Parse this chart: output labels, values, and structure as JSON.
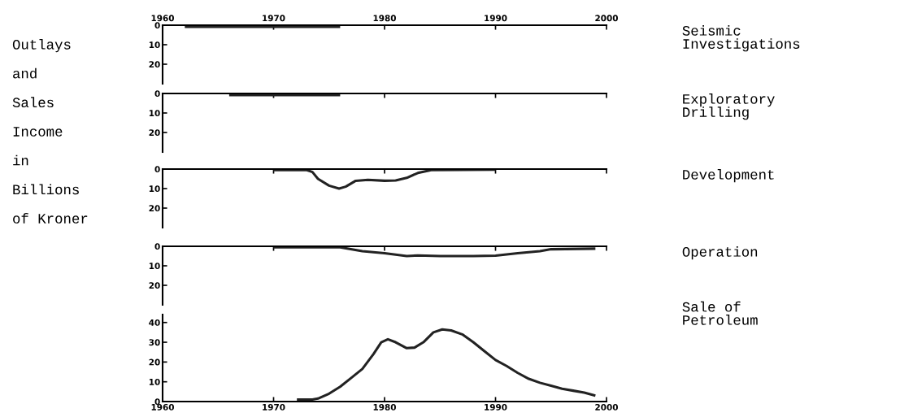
{
  "chart_data": [
    {
      "type": "line",
      "annotations": [
        "Outlays\nand\nSales\nIncome\nin\nBillions\nof Kroner"
      ],
      "xlim": [
        1960,
        2000
      ],
      "xticks": [
        1960,
        1970,
        1980,
        1990,
        2000
      ],
      "ylim": [
        30,
        0
      ],
      "yticks": [
        0,
        10,
        20
      ],
      "series": [
        {
          "name": "Seismic\nInvestigations",
          "color": "#222222",
          "x": [
            1962,
            1976
          ],
          "values": [
            0.8,
            0.8
          ]
        }
      ]
    },
    {
      "type": "line",
      "xlim": [
        1960,
        2000
      ],
      "xticks": [
        {
          "value": 1960,
          "label": null
        },
        {
          "value": 1970,
          "label": null
        },
        {
          "value": 1980,
          "label": null
        },
        {
          "value": 1990,
          "label": null
        },
        {
          "value": 2000,
          "label": null
        }
      ],
      "ylim": [
        30,
        0
      ],
      "yticks": [
        0,
        10,
        20
      ],
      "tick_labels": "y",
      "series": [
        {
          "name": "Exploratory\nDrilling",
          "color": "#222222",
          "x": [
            1966,
            1976
          ],
          "values": [
            0.8,
            0.8
          ]
        }
      ]
    },
    {
      "type": "line",
      "xlim": [
        1960,
        2000
      ],
      "xticks": [
        {
          "value": 1960,
          "label": null
        },
        {
          "value": 1970,
          "label": null
        },
        {
          "value": 1980,
          "label": null
        },
        {
          "value": 1990,
          "label": null
        },
        {
          "value": 2000,
          "label": null
        }
      ],
      "ylim": [
        30,
        0
      ],
      "yticks": [
        0,
        10,
        20
      ],
      "tick_labels": "y",
      "series": [
        {
          "name": "Development",
          "color": "#222222",
          "x": [
            1970,
            1973,
            1973.5,
            1974,
            1975,
            1975.9,
            1976.5,
            1977.4,
            1978.5,
            1980,
            1981,
            1982,
            1983,
            1984.2,
            1990
          ],
          "values": [
            0.5,
            0.5,
            1.5,
            5,
            8.5,
            10,
            9,
            6,
            5.5,
            6,
            5.8,
            4.5,
            2,
            0.5,
            0.3
          ]
        }
      ]
    },
    {
      "type": "line",
      "xlim": [
        1960,
        2000
      ],
      "xticks": [
        {
          "value": 1960,
          "label": null
        },
        {
          "value": 1970,
          "label": null
        },
        {
          "value": 1980,
          "label": null
        },
        {
          "value": 1990,
          "label": null
        },
        {
          "value": 2000,
          "label": null
        }
      ],
      "ylim": [
        30,
        0
      ],
      "yticks": [
        0,
        10,
        20
      ],
      "tick_labels": "y",
      "series": [
        {
          "name": "Operation",
          "color": "#222222",
          "x": [
            1970,
            1976,
            1978,
            1980,
            1982,
            1983,
            1985,
            1988,
            1990,
            1992,
            1994,
            1995,
            1999
          ],
          "values": [
            0.5,
            0.5,
            2.5,
            3.5,
            5,
            4.7,
            5,
            5,
            4.8,
            3.5,
            2.5,
            1.5,
            1.2
          ]
        }
      ]
    },
    {
      "type": "line",
      "xlim": [
        1960,
        2000
      ],
      "xticks": [
        1960,
        1970,
        1980,
        1990,
        2000
      ],
      "ylim": [
        0,
        44
      ],
      "yticks": [
        0,
        10,
        20,
        30,
        40
      ],
      "series": [
        {
          "name": "Sale of\nPetroleum",
          "color": "#222222",
          "x": [
            1972.1,
            1973.5,
            1974,
            1975,
            1976,
            1977,
            1978,
            1979,
            1979.7,
            1980.3,
            1981,
            1982,
            1982.7,
            1983.5,
            1984.4,
            1985.2,
            1986,
            1987,
            1988,
            1989,
            1990,
            1991,
            1992,
            1993,
            1994,
            1995,
            1996,
            1997,
            1998,
            1999
          ],
          "values": [
            1,
            1,
            1.5,
            4,
            7.5,
            12,
            16.5,
            24,
            30,
            31.5,
            30,
            27,
            27.3,
            30,
            35,
            36.5,
            36,
            34,
            30,
            25.5,
            21,
            18,
            14.5,
            11.5,
            9.5,
            8,
            6.5,
            5.5,
            4.5,
            3
          ]
        }
      ]
    }
  ]
}
